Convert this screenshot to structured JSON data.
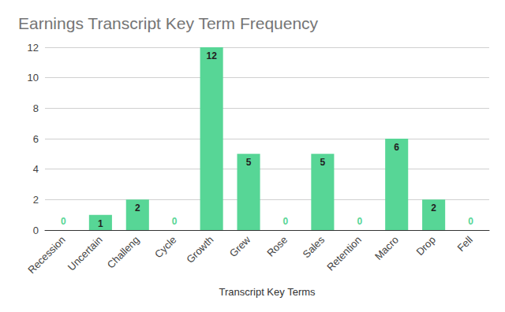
{
  "chart_data": {
    "type": "bar",
    "title": "Earnings Transcript Key Term Frequency",
    "x_label": "Transcript Key Terms",
    "categories": [
      "Recession",
      "Uncertain",
      "Challeng",
      "Cycle",
      "Growth",
      "Grew",
      "Rose",
      "Sales",
      "Retention",
      "Macro",
      "Drop",
      "Fell"
    ],
    "values": [
      0,
      1,
      2,
      0,
      12,
      5,
      0,
      5,
      0,
      6,
      2,
      0
    ],
    "color": "#57d696",
    "ylim": [
      0,
      12
    ],
    "yticks": [
      0,
      2,
      4,
      6,
      8,
      10,
      12
    ],
    "grid": true,
    "data_labels": true
  }
}
